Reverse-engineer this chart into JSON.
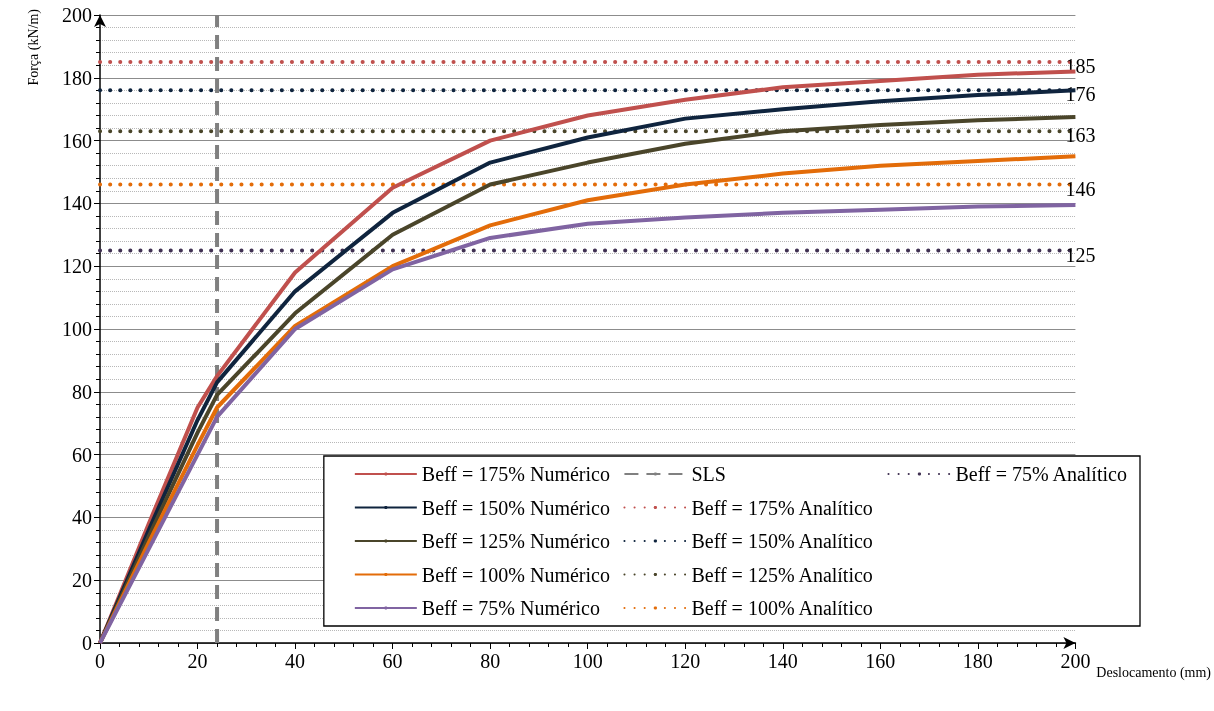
{
  "chart_data": {
    "type": "line",
    "xlabel": "Deslocamento (mm)",
    "ylabel": "Força (kN/m)",
    "xlim": [
      0,
      200
    ],
    "xticks": [
      0,
      20,
      40,
      60,
      80,
      100,
      120,
      140,
      160,
      180,
      200
    ],
    "ylim": [
      0,
      200
    ],
    "yticks": [
      0,
      20,
      40,
      60,
      80,
      100,
      120,
      140,
      160,
      180,
      200
    ],
    "grid": true,
    "legend": "bottom right",
    "marker": "none",
    "x": [
      0,
      10,
      20,
      24,
      40,
      60,
      80,
      100,
      120,
      140,
      160,
      180,
      200
    ],
    "series": [
      {
        "name": "Beff = 175% Numérico",
        "color": "#c0504d",
        "line_style": "solid",
        "values": [
          0,
          38,
          75,
          85,
          118,
          145,
          160,
          168,
          173,
          177,
          179,
          181,
          182
        ]
      },
      {
        "name": "Beff = 150% Numérico",
        "color": "#0f243e",
        "line_style": "solid",
        "values": [
          0,
          36,
          71,
          83,
          112,
          137,
          153,
          161,
          167,
          170,
          172.5,
          174.5,
          176
        ]
      },
      {
        "name": "Beff = 125% Numérico",
        "color": "#4a452a",
        "line_style": "solid",
        "values": [
          0,
          34,
          67,
          79,
          105,
          130,
          146,
          153,
          159,
          163,
          165,
          166.5,
          167.5
        ]
      },
      {
        "name": "Beff = 100% Numérico",
        "color": "#e36c09",
        "line_style": "solid",
        "values": [
          0,
          32,
          63,
          75,
          101,
          120,
          133,
          141,
          146,
          149.5,
          152,
          153.5,
          155
        ]
      },
      {
        "name": "Beff = 75% Numérico",
        "color": "#8064a2",
        "line_style": "solid",
        "values": [
          0,
          30,
          60,
          72,
          100,
          119,
          129,
          133.5,
          135.5,
          137,
          138,
          139,
          139.5
        ]
      },
      {
        "name": "SLS",
        "color": "#808080",
        "line_style": "dashed",
        "x": [
          24,
          24
        ],
        "values": [
          0,
          200
        ]
      },
      {
        "name": "Beff = 175% Analítico",
        "color": "#c0504d",
        "line_style": "dotted",
        "x": [
          0,
          200
        ],
        "values": [
          185,
          185
        ],
        "value_labels": [
          null,
          "185"
        ]
      },
      {
        "name": "Beff = 150% Analítico",
        "color": "#0f243e",
        "line_style": "dotted",
        "x": [
          0,
          200
        ],
        "values": [
          176,
          176
        ],
        "value_labels": [
          null,
          "176"
        ]
      },
      {
        "name": "Beff = 125% Analítico",
        "color": "#4a452a",
        "line_style": "dotted",
        "x": [
          0,
          200
        ],
        "values": [
          163,
          163
        ],
        "value_labels": [
          null,
          "163"
        ]
      },
      {
        "name": "Beff = 100% Analítico",
        "color": "#e36c09",
        "line_style": "dotted",
        "x": [
          0,
          200
        ],
        "values": [
          146,
          146
        ],
        "value_labels": [
          null,
          "146"
        ]
      },
      {
        "name": "Beff = 75% Analítico",
        "color": "#403152",
        "line_style": "dotted",
        "x": [
          0,
          200
        ],
        "values": [
          125,
          125
        ],
        "value_labels": [
          null,
          "125"
        ]
      }
    ]
  }
}
